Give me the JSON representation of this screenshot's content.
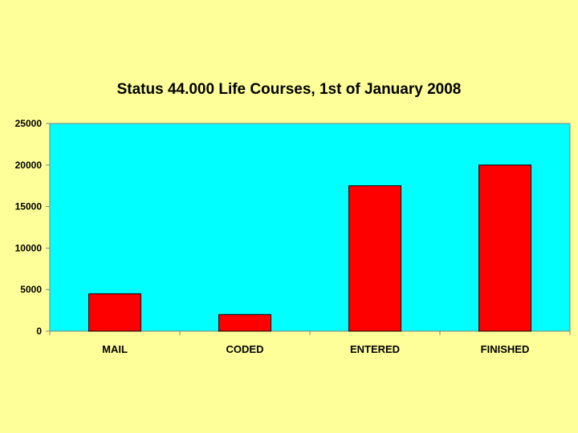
{
  "colors": {
    "background": "#FFFF99",
    "plot_area": "#00FFFF",
    "bar_fill": "#FF0000",
    "bar_stroke": "#000000",
    "axis": "#808080"
  },
  "chart_data": {
    "type": "bar",
    "title": "Status 44.000 Life Courses, 1st of January 2008",
    "xlabel": "",
    "ylabel": "",
    "categories": [
      "MAIL",
      "CODED",
      "ENTERED",
      "FINISHED"
    ],
    "values": [
      4500,
      2000,
      17500,
      20000
    ],
    "ylim": [
      0,
      25000
    ],
    "yticks": [
      "0",
      "5000",
      "10000",
      "15000",
      "20000",
      "25000"
    ],
    "grid": false,
    "legend": "none"
  }
}
